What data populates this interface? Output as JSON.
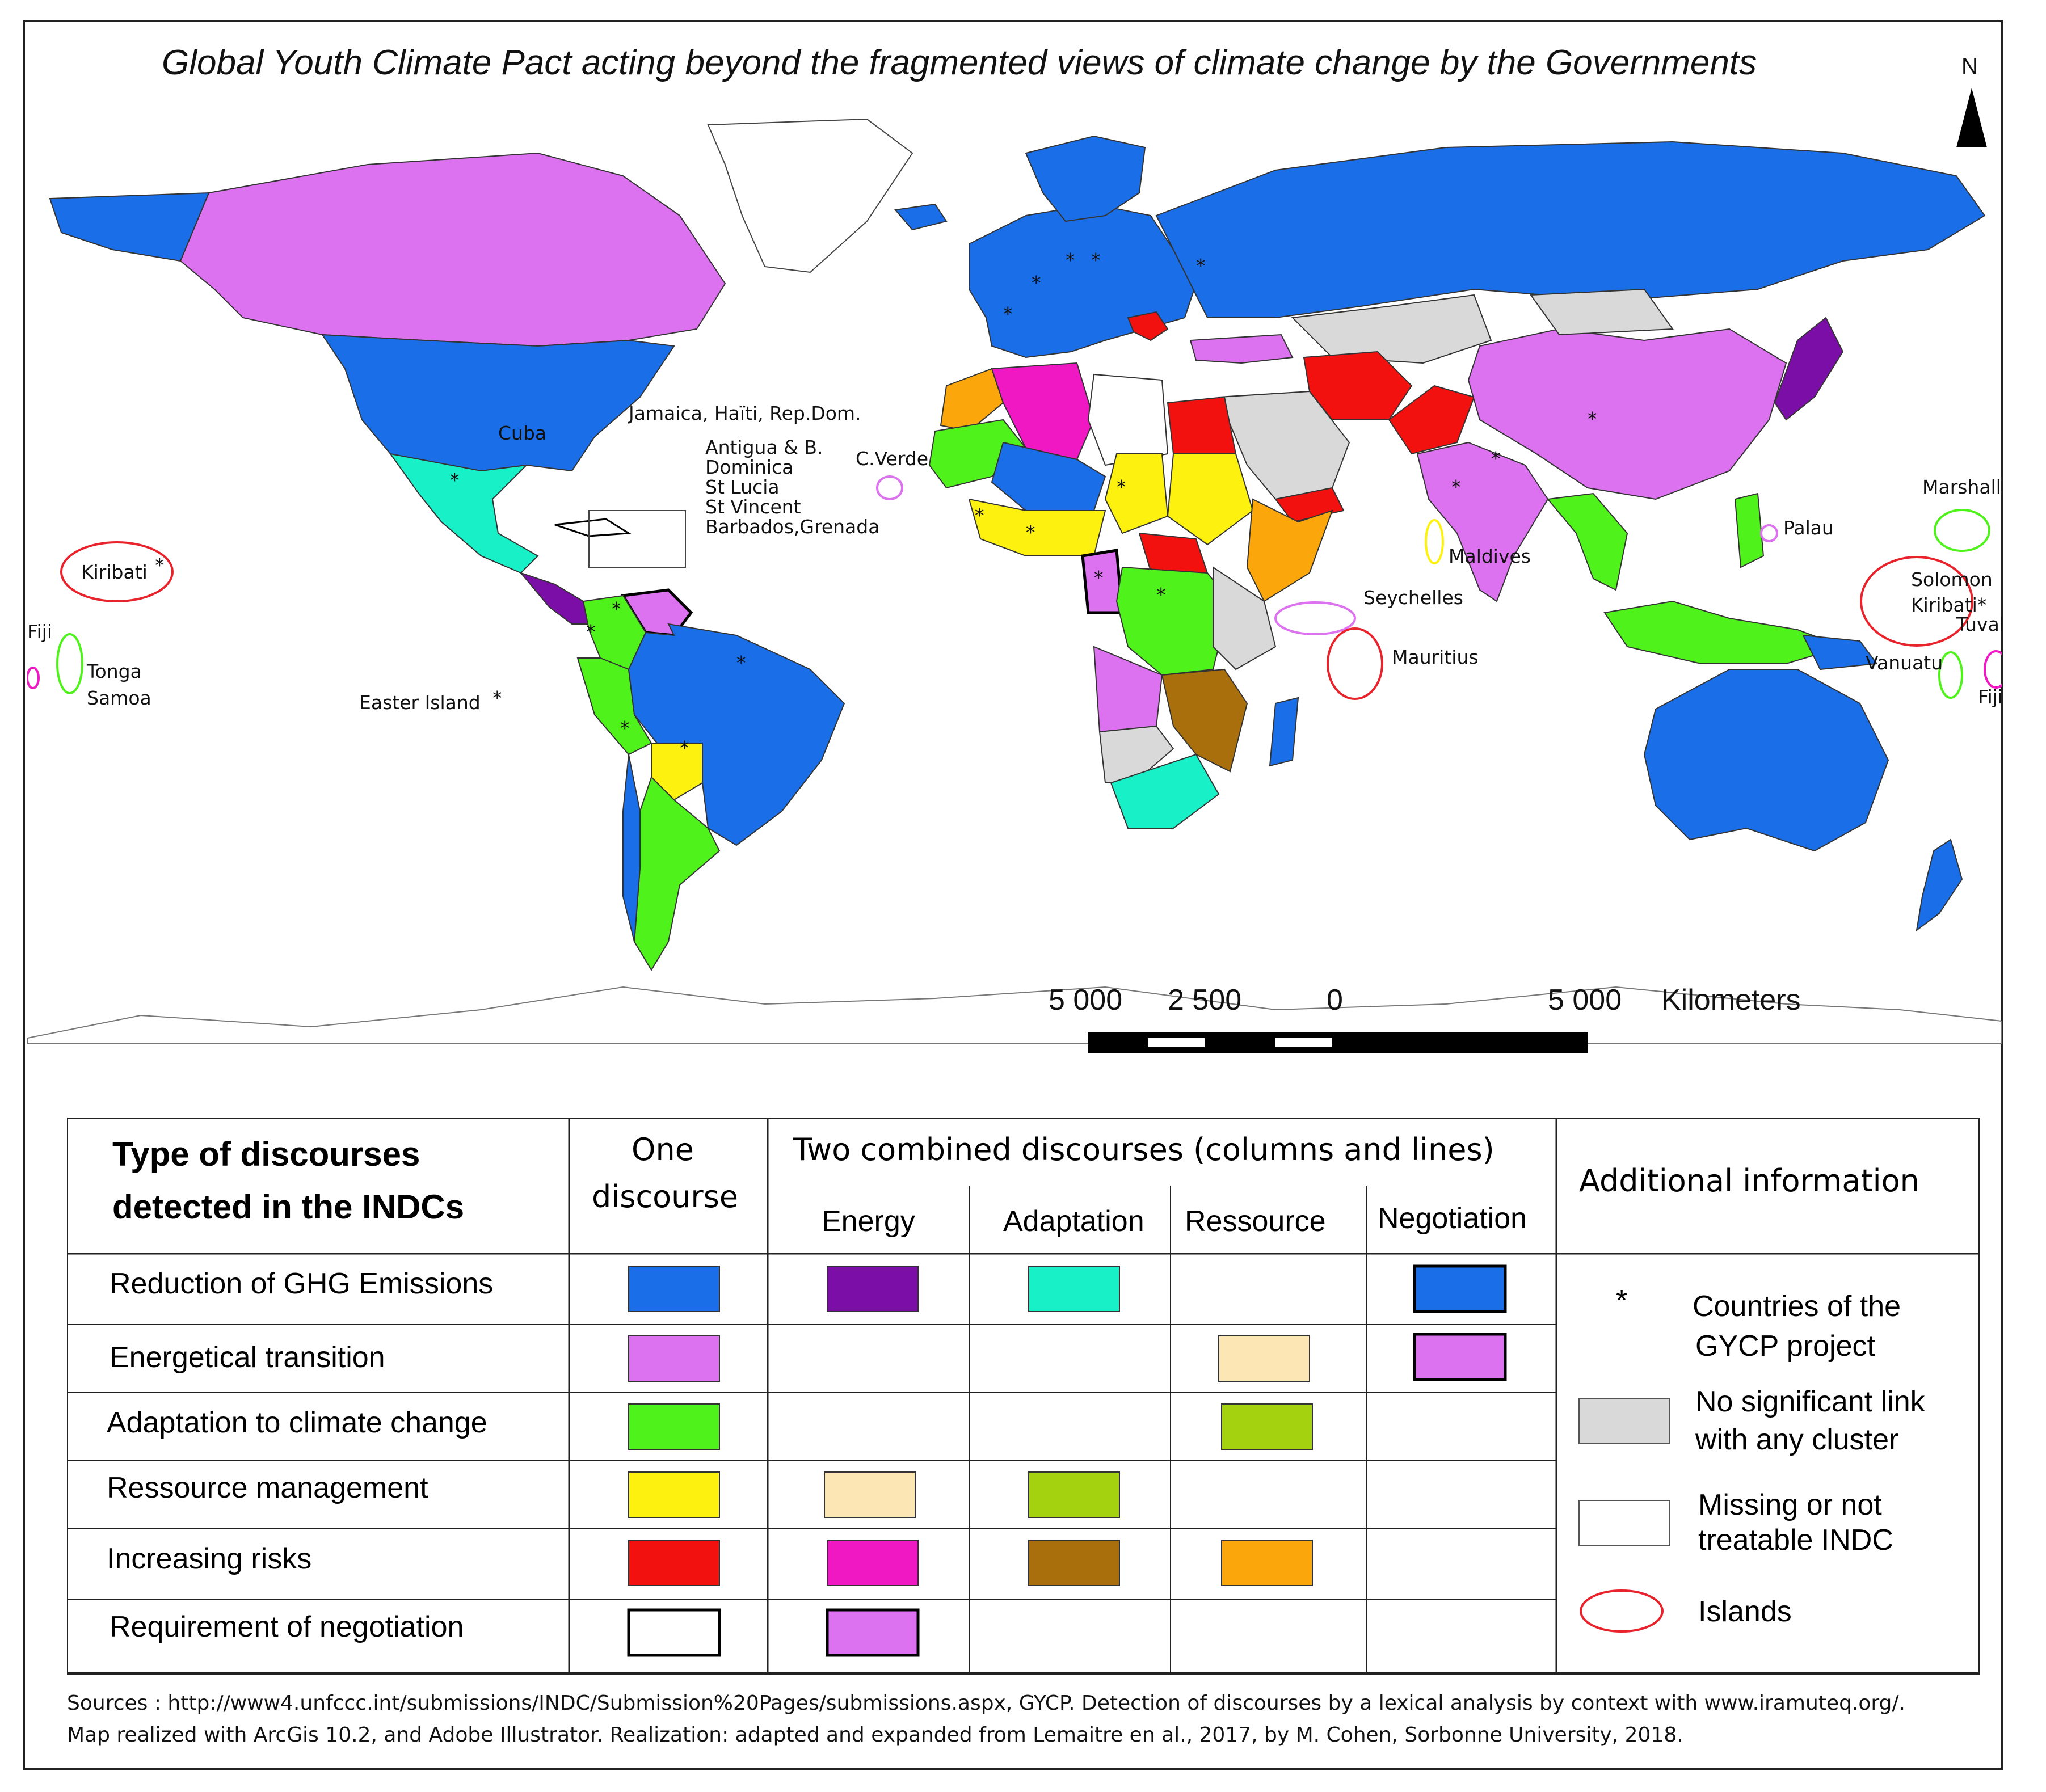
{
  "title": "Global Youth Climate Pact acting beyond the fragmented views of climate change by the Governments",
  "north_label": "N",
  "colors": {
    "reduction": "#1a6fe8",
    "reduction_energy": "#7c0ea8",
    "reduction_adaptation": "#18f0c8",
    "reduction_negotiation": "#1a6fe8",
    "energetical": "#dd72f0",
    "energetical_ressource": "#fbe6b4",
    "energetical_negotiation": "#dd72f0",
    "adaptation": "#4ff21a",
    "adaptation_ressource": "#a5d20f",
    "ressource": "#fcf10f",
    "increasing_risks": "#f2110f",
    "risks_energy": "#f018c3",
    "risks_adaptation": "#a86f0c",
    "risks_ressource": "#fba60b",
    "no_link": "#d9d9d9",
    "missing": "#ffffff",
    "island_ring": "#e8232c",
    "ocean": "#ffffff"
  },
  "map": {
    "labels": {
      "cuba": "Cuba",
      "jamaica": "Jamaica, Haïti, Rep.Dom.",
      "antigua": "Antigua & B.",
      "dominica": "Dominica",
      "stlucia": "St Lucia",
      "stvincent": "St Vincent",
      "barbados": "Barbados,Grenada",
      "cverde": "C.Verde",
      "kiribati_w": "Kiribati",
      "fiji_w": "Fiji",
      "tonga": "Tonga",
      "samoa": "Samoa",
      "easter": "Easter Island",
      "maldives": "Maldives",
      "seychelles": "Seychelles",
      "mauritius": "Mauritius",
      "palau": "Palau",
      "marshall": "Marshall",
      "solomon": "Solomon",
      "kiribati_e": "Kiribati*",
      "tuvalu": "Tuvalu",
      "vanuatu": "Vanuatu",
      "fiji_e": "Fiji"
    },
    "star": "*",
    "scale": {
      "ticks": [
        "5 000",
        "2 500",
        "0",
        "5 000"
      ],
      "unit": "Kilometers"
    }
  },
  "legend": {
    "heading_line1": "Type of discourses",
    "heading_line2": "detected in the INDCs",
    "one_line1": "One",
    "one_line2": "discourse",
    "two_title": "Two combined discourses (columns and lines)",
    "sub": [
      "Energy",
      "Adaptation",
      "Ressource",
      "Negotiation"
    ],
    "additional": "Additional information",
    "rows": [
      "Reduction of GHG Emissions",
      "Energetical transition",
      "Adaptation to climate change",
      "Ressource management",
      "Increasing risks",
      "Requirement of negotiation"
    ],
    "add_items": {
      "star": "*",
      "gycp_1": "Countries of the",
      "gycp_2": "GYCP project",
      "nolink_1": "No significant link",
      "nolink_2": "with any cluster",
      "missing_1": "Missing or not",
      "missing_2": "treatable INDC",
      "islands": "Islands"
    }
  },
  "sources": {
    "line1": "Sources : http://www4.unfccc.int/submissions/INDC/Submission%20Pages/submissions.aspx, GYCP.  Detection of discourses by a lexical analysis by context with www.iramuteq.org/.",
    "line2": "Map realized with ArcGis 10.2,  and Adobe Illustrator. Realization: adapted and expanded from Lemaitre en al., 2017, by M. Cohen, Sorbonne University, 2018."
  }
}
